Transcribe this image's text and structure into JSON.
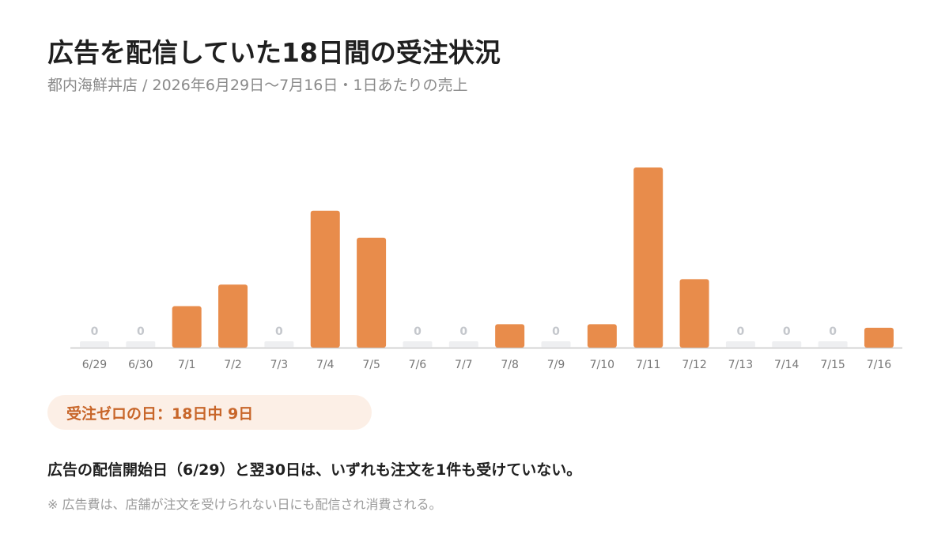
{
  "header": {
    "title": "広告を配信していた18日間の受注状況",
    "subtitle": "都内海鮮丼店 / 2026年6月29日〜7月16日・1日あたりの売上"
  },
  "chart_data": {
    "type": "bar",
    "categories": [
      "6/29",
      "6/30",
      "7/1",
      "7/2",
      "7/3",
      "7/4",
      "7/5",
      "7/6",
      "7/7",
      "7/8",
      "7/9",
      "7/10",
      "7/11",
      "7/12",
      "7/13",
      "7/14",
      "7/15",
      "7/16"
    ],
    "values": [
      0,
      0,
      23,
      35,
      0,
      76,
      61,
      0,
      0,
      13,
      0,
      13,
      100,
      38,
      0,
      0,
      0,
      11
    ],
    "zero_labels": [
      "0",
      "0",
      "0",
      "0",
      "0",
      "0",
      "0",
      "0",
      "0"
    ],
    "grid": false,
    "colors": {
      "bar": "#e88c4b",
      "zero_bar": "#eeeff1",
      "zero_label": "#c4c7cc",
      "axis": "#c8c8c8"
    }
  },
  "summary": {
    "badge": "受注ゼロの日：18日中 9日",
    "statement": "広告の配信開始日（6/29）と翌30日は、いずれも注文を1件も受けていない。",
    "note": "※ 広告費は、店舗が注文を受けられない日にも配信され消費される。"
  }
}
